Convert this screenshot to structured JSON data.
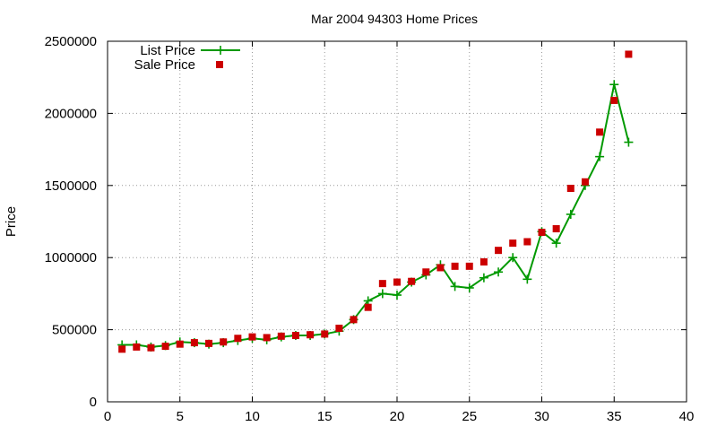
{
  "chart_data": {
    "type": "line",
    "title": "Mar 2004 94303 Home Prices",
    "xlabel": "",
    "ylabel": "Price",
    "xlim": [
      0,
      40
    ],
    "ylim": [
      0,
      2500000
    ],
    "xticks": [
      0,
      5,
      10,
      15,
      20,
      25,
      30,
      35,
      40
    ],
    "yticks": [
      0,
      500000,
      1000000,
      1500000,
      2000000,
      2500000
    ],
    "x_tick_labels": [
      "0",
      "5",
      "10",
      "15",
      "20",
      "25",
      "30",
      "35",
      "40"
    ],
    "y_tick_labels": [
      "0",
      "500000",
      "1000000",
      "1500000",
      "2000000",
      "2500000"
    ],
    "grid": true,
    "legend_position": "top-left",
    "series": [
      {
        "name": "List Price",
        "style": "line-with-plus-markers",
        "color": "#009900",
        "x": [
          1,
          2,
          3,
          4,
          5,
          6,
          7,
          8,
          9,
          10,
          11,
          12,
          13,
          14,
          15,
          16,
          17,
          18,
          19,
          20,
          21,
          22,
          23,
          24,
          25,
          26,
          27,
          28,
          29,
          30,
          31,
          32,
          33,
          34,
          35,
          36
        ],
        "values": [
          395000,
          395000,
          380000,
          390000,
          415000,
          410000,
          400000,
          410000,
          425000,
          440000,
          430000,
          450000,
          460000,
          460000,
          470000,
          490000,
          570000,
          700000,
          750000,
          740000,
          830000,
          880000,
          950000,
          800000,
          790000,
          860000,
          900000,
          1000000,
          850000,
          1180000,
          1100000,
          1300000,
          1500000,
          1700000,
          2200000,
          1800000
        ]
      },
      {
        "name": "Sale Price",
        "style": "square-markers",
        "color": "#cc0000",
        "x": [
          1,
          2,
          3,
          4,
          5,
          6,
          7,
          8,
          9,
          10,
          11,
          12,
          13,
          14,
          15,
          16,
          17,
          18,
          19,
          20,
          21,
          22,
          23,
          24,
          25,
          26,
          27,
          28,
          29,
          30,
          31,
          32,
          33,
          34,
          35,
          36
        ],
        "values": [
          365000,
          380000,
          375000,
          385000,
          400000,
          410000,
          405000,
          415000,
          440000,
          450000,
          445000,
          455000,
          460000,
          465000,
          470000,
          510000,
          570000,
          655000,
          820000,
          830000,
          835000,
          900000,
          930000,
          940000,
          940000,
          970000,
          1050000,
          1100000,
          1110000,
          1175000,
          1200000,
          1480000,
          1525000,
          1870000,
          2090000,
          2410000
        ]
      }
    ]
  }
}
